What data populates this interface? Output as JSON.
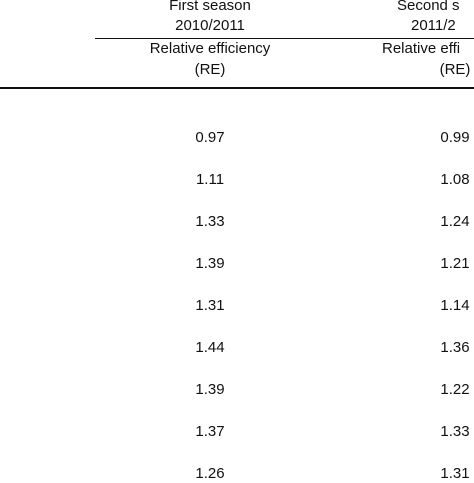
{
  "table": {
    "columns": [
      {
        "season": "First season",
        "years": "2010/2011",
        "measure": "Relative efficiency",
        "unit": "(RE)"
      },
      {
        "season": "Second s",
        "years": "2011/2",
        "measure": "Relative effi",
        "unit": "(RE)"
      }
    ],
    "rows": [
      [
        "0.97",
        "0.99"
      ],
      [
        "1.11",
        "1.08"
      ],
      [
        "1.33",
        "1.24"
      ],
      [
        "1.39",
        "1.21"
      ],
      [
        "1.31",
        "1.14"
      ],
      [
        "1.44",
        "1.36"
      ],
      [
        "1.39",
        "1.22"
      ],
      [
        "1.37",
        "1.33"
      ],
      [
        "1.26",
        "1.31"
      ]
    ]
  }
}
